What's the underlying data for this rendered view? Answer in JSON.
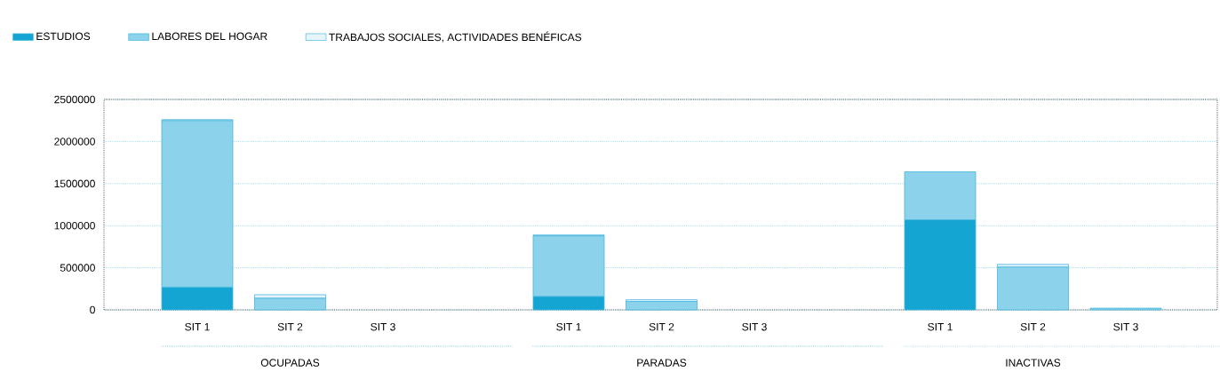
{
  "chart_data": {
    "type": "bar",
    "stacked": true,
    "categories": [
      "SIT 1",
      "SIT 2",
      "SIT 3",
      null,
      "SIT 1",
      "SIT 2",
      "SIT 3",
      null,
      "SIT 1",
      "SIT 2",
      "SIT 3"
    ],
    "series": [
      {
        "name": "ESTUDIOS",
        "color": "#14a5d3",
        "values": [
          270000,
          0,
          0,
          null,
          160000,
          0,
          0,
          null,
          1070000,
          0,
          0
        ]
      },
      {
        "name": "LABORES DEL HOGAR",
        "color": "#8bd2ea",
        "values": [
          1980000,
          140000,
          0,
          null,
          720000,
          100000,
          0,
          null,
          570000,
          510000,
          20000
        ]
      },
      {
        "name": "TRABAJOS SOCIALES, ACTIVIDADES BENÉFICAS",
        "color": "#e6f5fb",
        "values": [
          10000,
          40000,
          0,
          null,
          10000,
          20000,
          0,
          null,
          0,
          30000,
          0
        ]
      }
    ],
    "ylim": [
      0,
      2500000
    ],
    "yticks": [
      0,
      500000,
      1000000,
      1500000,
      2000000,
      2500000
    ],
    "grid": "y",
    "legend": "top left",
    "annotations": [
      "OCUPADAS",
      "PARADAS",
      "INACTIVAS"
    ]
  }
}
